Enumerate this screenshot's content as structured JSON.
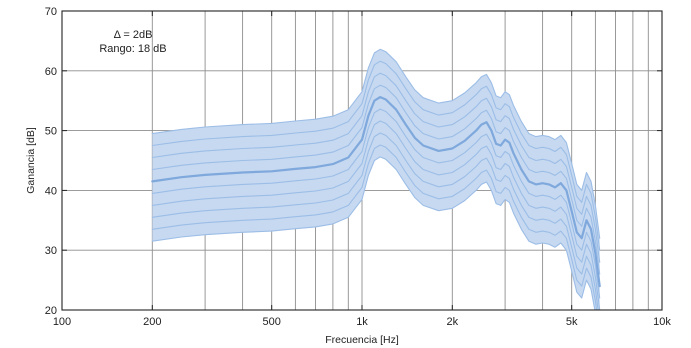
{
  "chart_data": {
    "type": "line",
    "title": "",
    "xlabel": "Frecuencia [Hz]",
    "ylabel": "Ganancia [dB]",
    "x_scale": "log",
    "xlim": [
      100,
      10000
    ],
    "ylim": [
      20,
      70
    ],
    "grid": true,
    "x_tick_values": [
      100,
      200,
      500,
      1000,
      2000,
      5000,
      10000
    ],
    "x_tick_labels": [
      "100",
      "200",
      "500",
      "1k",
      "2k",
      "5k",
      "10k"
    ],
    "x_minor_grid": [
      300,
      400,
      600,
      700,
      800,
      900,
      3000,
      4000,
      6000,
      7000,
      8000,
      9000
    ],
    "y_ticks": [
      20,
      30,
      40,
      50,
      60,
      70
    ],
    "annotations": [
      "Δ = 2dB",
      "Rango: 18 dB"
    ],
    "colors": {
      "band_fill": "#c6d9f1",
      "curve": "#9cbde6",
      "curve_emphasis": "#7fa8dc",
      "grid": "#8e8e8e",
      "frame": "#222222"
    },
    "step_db": 2,
    "range_db": 18,
    "curve_count": 10,
    "emphasized_curve_offset": 10,
    "base_curve": {
      "frequency": [
        200,
        250,
        300,
        400,
        500,
        600,
        700,
        800,
        900,
        1000,
        1050,
        1100,
        1150,
        1200,
        1300,
        1400,
        1500,
        1600,
        1800,
        2000,
        2200,
        2400,
        2500,
        2600,
        2700,
        2800,
        2900,
        3000,
        3100,
        3200,
        3400,
        3600,
        3800,
        4000,
        4200,
        4400,
        4600,
        4800,
        5000,
        5200,
        5400,
        5600,
        5800,
        6000,
        6200
      ],
      "gain_db": [
        31.5,
        32.2,
        32.6,
        33.0,
        33.2,
        33.6,
        33.9,
        34.4,
        35.5,
        38.5,
        42.5,
        45.0,
        45.6,
        45.2,
        43.5,
        41.0,
        38.8,
        37.5,
        36.6,
        37.0,
        38.3,
        40.0,
        41.0,
        41.4,
        40.0,
        37.8,
        37.5,
        38.5,
        38.0,
        36.2,
        33.5,
        31.5,
        31.0,
        31.2,
        31.0,
        30.5,
        31.2,
        30.0,
        26.5,
        23.0,
        22.0,
        25.0,
        23.5,
        19.5,
        14.0
      ]
    }
  }
}
